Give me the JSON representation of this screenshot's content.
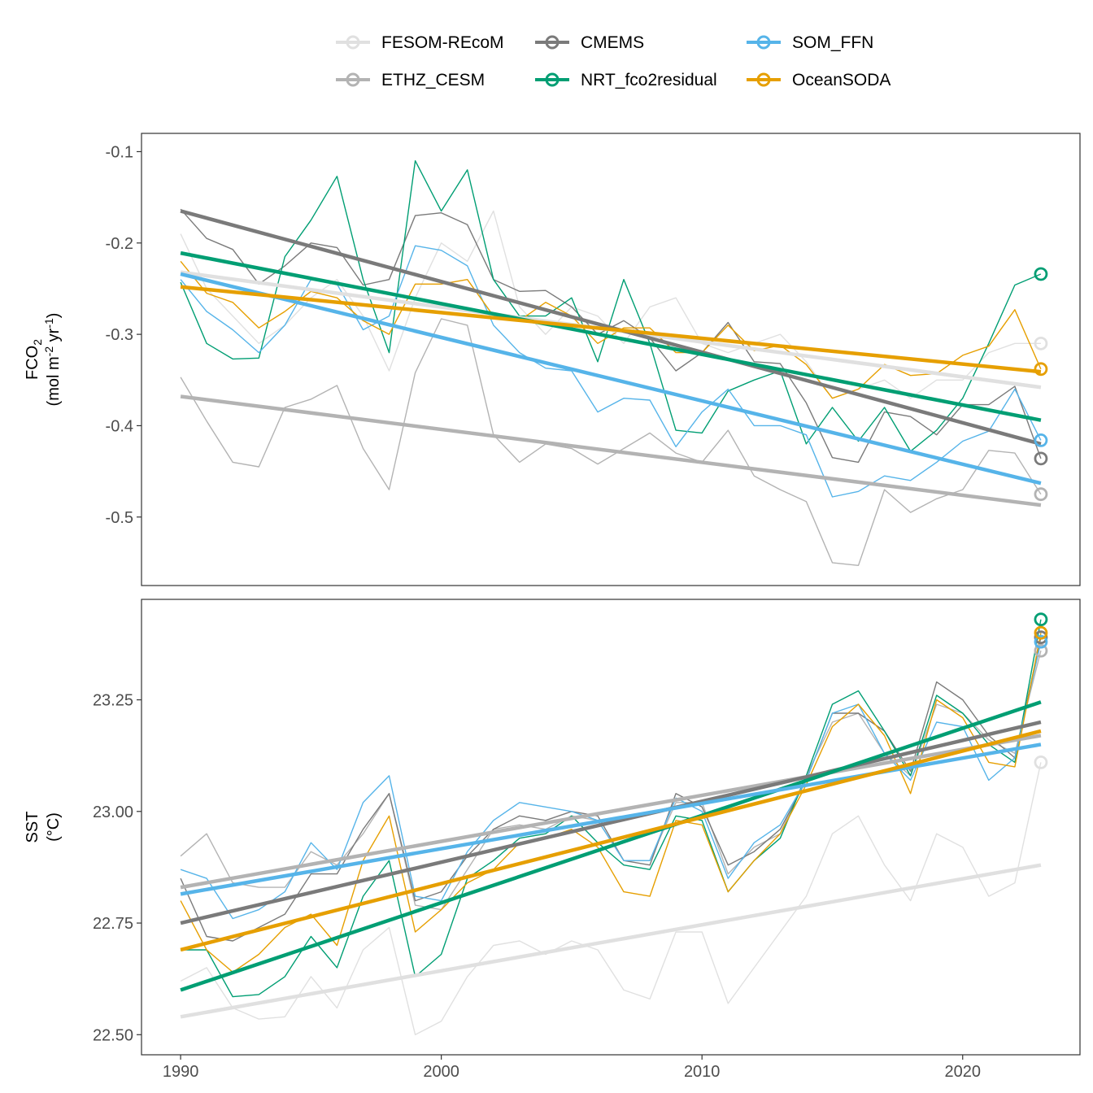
{
  "legend": [
    {
      "name": "FESOM-REcoM",
      "color": "#e0e0e0"
    },
    {
      "name": "ETHZ_CESM",
      "color": "#b3b3b3"
    },
    {
      "name": "CMEMS",
      "color": "#7a7a7a"
    },
    {
      "name": "NRT_fco2residual",
      "color": "#009e73"
    },
    {
      "name": "SOM_FFN",
      "color": "#56b4e9"
    },
    {
      "name": "OceanSODA",
      "color": "#e69f00"
    }
  ],
  "chart_data": [
    {
      "type": "line",
      "ylabel_main": "FCO",
      "ylabel_sub": "2",
      "ylabel_units": [
        "(mol m",
        "-2",
        " yr",
        "-1",
        ")"
      ],
      "xlim": [
        1988.5,
        2024.5
      ],
      "ylim": [
        -0.575,
        -0.08
      ],
      "yticks": [
        -0.1,
        -0.2,
        -0.3,
        -0.4,
        -0.5
      ],
      "ytick_labels": [
        "-0.1",
        "-0.2",
        "-0.3",
        "-0.4",
        "-0.5"
      ],
      "x": [
        1990,
        1991,
        1992,
        1993,
        1994,
        1995,
        1996,
        1997,
        1998,
        1999,
        2000,
        2001,
        2002,
        2003,
        2004,
        2005,
        2006,
        2007,
        2008,
        2009,
        2010,
        2011,
        2012,
        2013,
        2014,
        2015,
        2016,
        2017,
        2018,
        2019,
        2020,
        2021,
        2022,
        2023
      ],
      "series": [
        {
          "name": "FESOM-REcoM",
          "color": "#e0e0e0",
          "values": [
            -0.19,
            -0.25,
            -0.28,
            -0.31,
            -0.29,
            -0.26,
            -0.24,
            -0.28,
            -0.34,
            -0.26,
            -0.2,
            -0.22,
            -0.165,
            -0.27,
            -0.3,
            -0.27,
            -0.28,
            -0.31,
            -0.27,
            -0.26,
            -0.31,
            -0.32,
            -0.31,
            -0.3,
            -0.33,
            -0.37,
            -0.36,
            -0.35,
            -0.37,
            -0.35,
            -0.35,
            -0.32,
            -0.31,
            -0.31
          ],
          "trend": [
            -0.232,
            -0.358
          ]
        },
        {
          "name": "ETHZ_CESM",
          "color": "#b3b3b3",
          "values": [
            -0.347,
            -0.395,
            -0.44,
            -0.445,
            -0.38,
            -0.371,
            -0.356,
            -0.425,
            -0.47,
            -0.342,
            -0.283,
            -0.29,
            -0.41,
            -0.44,
            -0.42,
            -0.425,
            -0.442,
            -0.425,
            -0.408,
            -0.43,
            -0.44,
            -0.405,
            -0.455,
            -0.47,
            -0.483,
            -0.55,
            -0.553,
            -0.47,
            -0.495,
            -0.48,
            -0.47,
            -0.427,
            -0.43,
            -0.475
          ],
          "trend": [
            -0.368,
            -0.487
          ]
        },
        {
          "name": "CMEMS",
          "color": "#7a7a7a",
          "values": [
            -0.163,
            -0.195,
            -0.207,
            -0.245,
            -0.225,
            -0.2,
            -0.205,
            -0.246,
            -0.24,
            -0.17,
            -0.167,
            -0.18,
            -0.24,
            -0.253,
            -0.252,
            -0.27,
            -0.3,
            -0.285,
            -0.304,
            -0.34,
            -0.32,
            -0.287,
            -0.33,
            -0.332,
            -0.375,
            -0.435,
            -0.44,
            -0.385,
            -0.39,
            -0.41,
            -0.377,
            -0.377,
            -0.357,
            -0.436
          ],
          "trend": [
            -0.165,
            -0.42
          ]
        },
        {
          "name": "NRT_fco2residual",
          "color": "#009e73",
          "values": [
            -0.243,
            -0.31,
            -0.327,
            -0.326,
            -0.215,
            -0.175,
            -0.127,
            -0.24,
            -0.32,
            -0.11,
            -0.165,
            -0.12,
            -0.24,
            -0.28,
            -0.28,
            -0.26,
            -0.33,
            -0.24,
            -0.31,
            -0.405,
            -0.408,
            -0.362,
            -0.35,
            -0.34,
            -0.42,
            -0.38,
            -0.417,
            -0.38,
            -0.428,
            -0.405,
            -0.37,
            -0.31,
            -0.246,
            -0.234
          ],
          "trend": [
            -0.211,
            -0.394
          ]
        },
        {
          "name": "SOM_FFN",
          "color": "#56b4e9",
          "values": [
            -0.24,
            -0.275,
            -0.295,
            -0.32,
            -0.29,
            -0.24,
            -0.245,
            -0.295,
            -0.28,
            -0.203,
            -0.208,
            -0.225,
            -0.29,
            -0.32,
            -0.337,
            -0.34,
            -0.385,
            -0.37,
            -0.372,
            -0.423,
            -0.385,
            -0.36,
            -0.4,
            -0.4,
            -0.41,
            -0.478,
            -0.472,
            -0.455,
            -0.46,
            -0.44,
            -0.417,
            -0.406,
            -0.36,
            -0.416
          ],
          "trend": [
            -0.234,
            -0.463
          ]
        },
        {
          "name": "OceanSODA",
          "color": "#e69f00",
          "values": [
            -0.22,
            -0.255,
            -0.265,
            -0.293,
            -0.275,
            -0.253,
            -0.26,
            -0.285,
            -0.3,
            -0.245,
            -0.245,
            -0.24,
            -0.28,
            -0.285,
            -0.265,
            -0.28,
            -0.31,
            -0.293,
            -0.293,
            -0.32,
            -0.32,
            -0.29,
            -0.318,
            -0.312,
            -0.333,
            -0.37,
            -0.36,
            -0.333,
            -0.345,
            -0.343,
            -0.323,
            -0.313,
            -0.273,
            -0.338
          ],
          "trend": [
            -0.248,
            -0.341
          ]
        }
      ]
    },
    {
      "type": "line",
      "ylabel_main": "SST",
      "ylabel_units_text": "(°C)",
      "xlim": [
        1988.5,
        2024.5
      ],
      "ylim": [
        22.455,
        23.475
      ],
      "xticks": [
        1990,
        2000,
        2010,
        2020
      ],
      "xtick_labels": [
        "1990",
        "2000",
        "2010",
        "2020"
      ],
      "yticks": [
        22.5,
        22.75,
        23.0,
        23.25
      ],
      "ytick_labels": [
        "22.50",
        "22.75",
        "23.00",
        "23.25"
      ],
      "x": [
        1990,
        1991,
        1992,
        1993,
        1994,
        1995,
        1996,
        1997,
        1998,
        1999,
        2000,
        2001,
        2002,
        2003,
        2004,
        2005,
        2006,
        2007,
        2008,
        2009,
        2010,
        2011,
        2012,
        2013,
        2014,
        2015,
        2016,
        2017,
        2018,
        2019,
        2020,
        2021,
        2022,
        2023
      ],
      "series": [
        {
          "name": "FESOM-REcoM",
          "color": "#e0e0e0",
          "values": [
            22.62,
            22.65,
            22.56,
            22.535,
            22.54,
            22.63,
            22.56,
            22.69,
            22.74,
            22.5,
            22.53,
            22.63,
            22.7,
            22.71,
            22.68,
            22.71,
            22.69,
            22.6,
            22.58,
            22.73,
            22.73,
            22.57,
            22.65,
            22.73,
            22.81,
            22.95,
            22.99,
            22.88,
            22.8,
            22.95,
            22.92,
            22.81,
            22.84,
            23.11
          ],
          "trend": [
            22.54,
            22.88
          ]
        },
        {
          "name": "ETHZ_CESM",
          "color": "#b3b3b3",
          "values": [
            22.9,
            22.95,
            22.84,
            22.83,
            22.83,
            22.91,
            22.88,
            22.95,
            23.04,
            22.79,
            22.78,
            22.87,
            22.96,
            22.97,
            22.96,
            22.99,
            22.98,
            22.89,
            22.89,
            23.02,
            23.02,
            22.86,
            22.92,
            22.95,
            23.08,
            23.2,
            23.22,
            23.13,
            23.08,
            23.24,
            23.22,
            23.16,
            23.13,
            23.36
          ],
          "trend": [
            22.83,
            23.17
          ]
        },
        {
          "name": "CMEMS",
          "color": "#7a7a7a",
          "values": [
            22.85,
            22.72,
            22.71,
            22.74,
            22.77,
            22.86,
            22.86,
            22.96,
            23.04,
            22.8,
            22.82,
            22.9,
            22.96,
            22.99,
            22.98,
            23.0,
            22.99,
            22.89,
            22.88,
            23.04,
            23.01,
            22.88,
            22.91,
            22.96,
            23.07,
            23.22,
            23.22,
            23.18,
            23.09,
            23.29,
            23.25,
            23.17,
            23.12,
            23.39
          ],
          "trend": [
            22.75,
            23.2
          ]
        },
        {
          "name": "NRT_fco2residual",
          "color": "#009e73",
          "values": [
            22.69,
            22.69,
            22.585,
            22.59,
            22.63,
            22.72,
            22.65,
            22.81,
            22.89,
            22.63,
            22.68,
            22.85,
            22.89,
            22.94,
            22.95,
            22.99,
            22.93,
            22.88,
            22.87,
            22.99,
            22.98,
            22.82,
            22.89,
            22.94,
            23.08,
            23.24,
            23.27,
            23.18,
            23.08,
            23.26,
            23.22,
            23.15,
            23.11,
            23.43
          ],
          "trend": [
            22.6,
            23.245
          ]
        },
        {
          "name": "SOM_FFN",
          "color": "#56b4e9",
          "values": [
            22.87,
            22.85,
            22.76,
            22.78,
            22.82,
            22.93,
            22.87,
            23.02,
            23.08,
            22.81,
            22.8,
            22.91,
            22.98,
            23.02,
            23.01,
            23.0,
            22.98,
            22.89,
            22.89,
            23.03,
            23.0,
            22.85,
            22.93,
            22.97,
            23.07,
            23.22,
            23.24,
            23.13,
            23.07,
            23.2,
            23.19,
            23.07,
            23.12,
            23.38
          ],
          "trend": [
            22.815,
            23.15
          ]
        },
        {
          "name": "OceanSODA",
          "color": "#e69f00",
          "values": [
            22.8,
            22.69,
            22.64,
            22.68,
            22.74,
            22.77,
            22.7,
            22.89,
            22.99,
            22.73,
            22.78,
            22.84,
            22.87,
            22.93,
            22.94,
            22.96,
            22.92,
            22.82,
            22.81,
            22.98,
            22.97,
            22.82,
            22.89,
            22.95,
            23.06,
            23.19,
            23.24,
            23.17,
            23.04,
            23.25,
            23.21,
            23.11,
            23.1,
            23.4
          ],
          "trend": [
            22.69,
            23.18
          ]
        }
      ]
    }
  ]
}
